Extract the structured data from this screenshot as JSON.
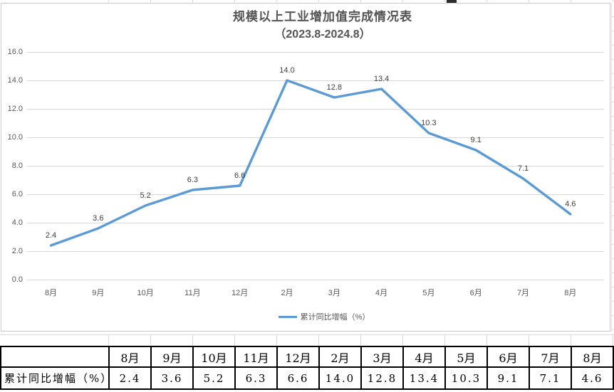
{
  "chart": {
    "title_line1": "规模以上工业增加值完成情况表",
    "title_line2": "（2023.8-2024.8）",
    "legend_label": "累计同比增幅（%）",
    "colors": {
      "line": "#5B9BD5",
      "gridline": "#D9D9D9",
      "axis_text": "#595959",
      "data_label_text": "#404040",
      "title_text": "#545454",
      "chart_border": "#C9C9C9"
    }
  },
  "chart_data": {
    "type": "line",
    "title": "规模以上工业增加值完成情况表（2023.8-2024.8）",
    "categories": [
      "8月",
      "9月",
      "10月",
      "11月",
      "12月",
      "2月",
      "3月",
      "4月",
      "5月",
      "6月",
      "7月",
      "8月"
    ],
    "series": [
      {
        "name": "累计同比增幅（%）",
        "values": [
          2.4,
          3.6,
          5.2,
          6.3,
          6.6,
          14.0,
          12.8,
          13.4,
          10.3,
          9.1,
          7.1,
          4.6
        ]
      }
    ],
    "data_labels": [
      "2.4",
      "3.6",
      "5.2",
      "6.3",
      "6.6",
      "14.0",
      "12.8",
      "13.4",
      "10.3",
      "9.1",
      "7.1",
      "4.6"
    ],
    "xlabel": "",
    "ylabel": "",
    "ylim": [
      0.0,
      16.0
    ],
    "ytick_step": 2.0,
    "ytick_labels": [
      "0.0",
      "2.0",
      "4.0",
      "6.0",
      "8.0",
      "10.0",
      "12.0",
      "14.0",
      "16.0"
    ],
    "grid": true,
    "legend_position": "bottom"
  },
  "table": {
    "row_label": "累计同比增幅（%）",
    "columns": [
      "8月",
      "9月",
      "10月",
      "11月",
      "12月",
      "2月",
      "3月",
      "4月",
      "5月",
      "6月",
      "7月",
      "8月"
    ],
    "values": [
      "2.4",
      "3.6",
      "5.2",
      "6.3",
      "6.6",
      "14.0",
      "12.8",
      "13.4",
      "10.3",
      "9.1",
      "7.1",
      "4.6"
    ]
  }
}
